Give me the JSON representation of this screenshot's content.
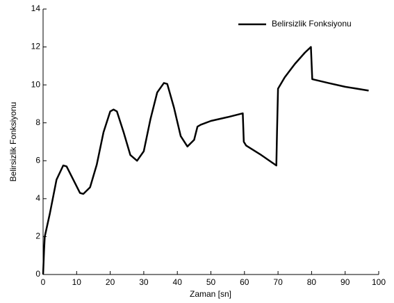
{
  "chart_data": {
    "type": "line",
    "x_label": "Zaman [sn]",
    "y_label": "Belirsizlik Fonksiyonu",
    "x": [
      0,
      0.3,
      0.5,
      2,
      4,
      6,
      7,
      9,
      11,
      12,
      14,
      16,
      18,
      20,
      21,
      22,
      24,
      26,
      28,
      30,
      32,
      34,
      36,
      37,
      39,
      41,
      43,
      45,
      46,
      47,
      50,
      55,
      59.5,
      59.8,
      60.5,
      65,
      69.5,
      69.7,
      70,
      72,
      75,
      78,
      79.8,
      80.2,
      85,
      90,
      97
    ],
    "series": [
      {
        "name": "Belirsizlik Fonksiyonu",
        "color": "#000000",
        "values": [
          0,
          1.3,
          2.0,
          3.2,
          5.0,
          5.75,
          5.7,
          5.0,
          4.3,
          4.25,
          4.6,
          5.8,
          7.5,
          8.6,
          8.7,
          8.6,
          7.5,
          6.3,
          6.0,
          6.5,
          8.2,
          9.6,
          10.1,
          10.05,
          8.8,
          7.3,
          6.75,
          7.1,
          7.8,
          7.9,
          8.1,
          8.3,
          8.5,
          7.0,
          6.8,
          6.3,
          5.75,
          7.5,
          9.8,
          10.4,
          11.1,
          11.7,
          12.0,
          10.3,
          10.1,
          9.9,
          9.7
        ]
      }
    ],
    "xlim": [
      0,
      100
    ],
    "xticks": [
      0,
      10,
      20,
      30,
      40,
      50,
      60,
      70,
      80,
      90,
      100
    ],
    "ylim": [
      0,
      14
    ],
    "yticks": [
      0,
      2,
      4,
      6,
      8,
      10,
      12,
      14
    ],
    "grid": false,
    "legend": "upper right"
  }
}
